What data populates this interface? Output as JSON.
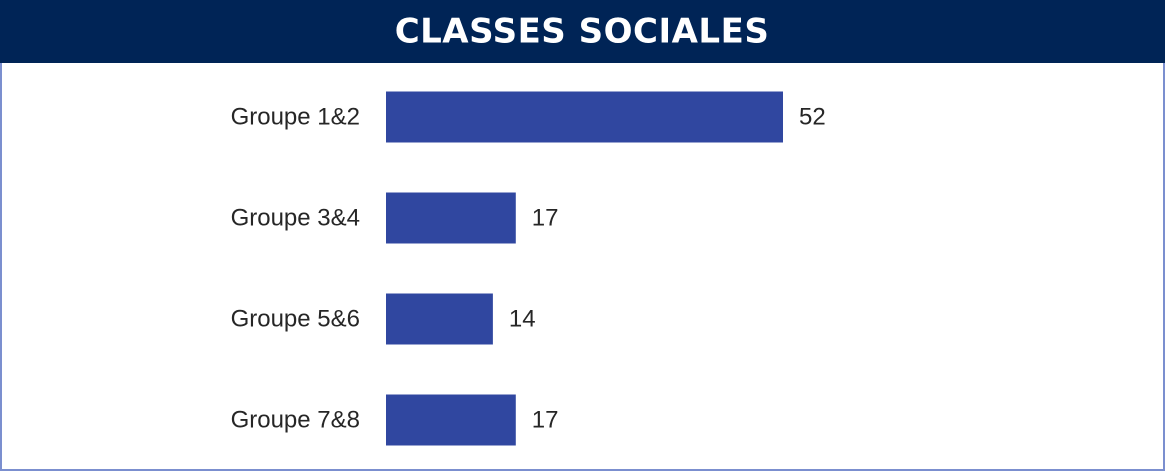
{
  "chart_data": {
    "type": "bar",
    "orientation": "horizontal",
    "title": "CLASSES SOCIALES",
    "categories": [
      "Groupe 1&2",
      "Groupe 3&4",
      "Groupe 5&6",
      "Groupe 7&8"
    ],
    "values": [
      52,
      17,
      14,
      17
    ],
    "color": "#3047a0"
  }
}
